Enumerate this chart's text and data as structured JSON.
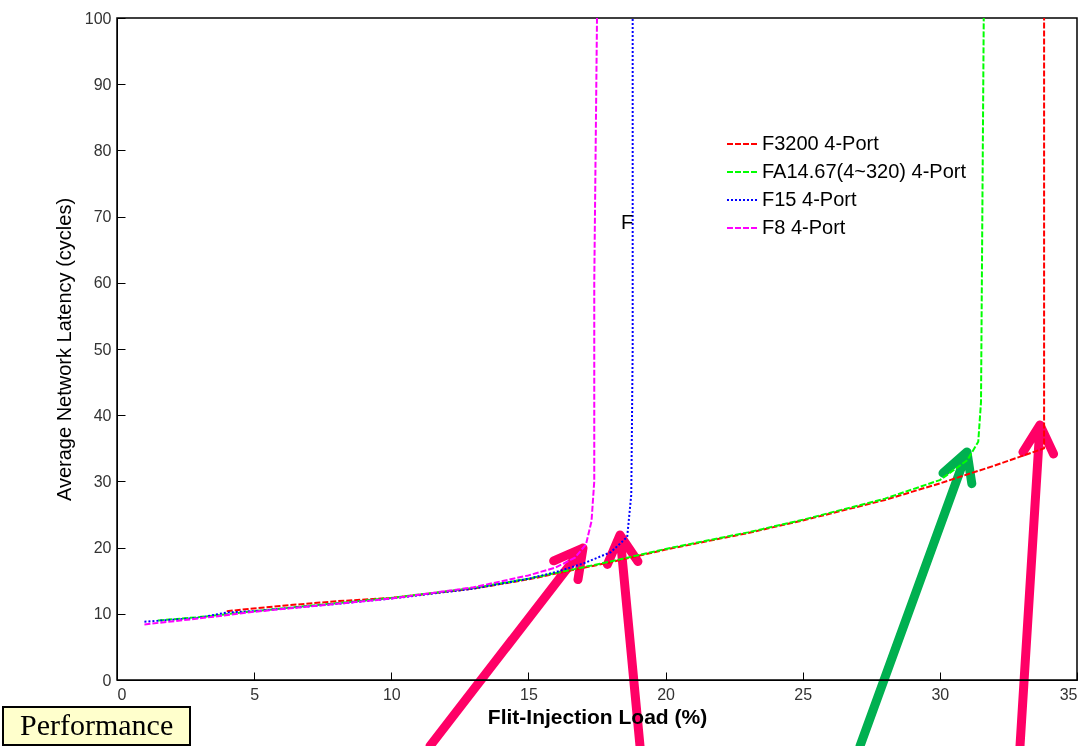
{
  "chart_data": {
    "type": "line",
    "xlabel": "Flit-Injection Load (%)",
    "ylabel": "Average Network Latency (cycles)",
    "xlim": [
      0,
      35
    ],
    "xticks": [
      0,
      5,
      10,
      15,
      20,
      25,
      30,
      35
    ],
    "ylim": [
      0,
      100
    ],
    "yticks": [
      0,
      10,
      20,
      30,
      40,
      50,
      60,
      70,
      80,
      90,
      100
    ],
    "grid": false,
    "legend": "top right",
    "marker": "none",
    "series": [
      {
        "name": "F3200 4-Port",
        "color": "#ff0000",
        "line_style": "dashed",
        "x": [
          4,
          6,
          8,
          10,
          13,
          15,
          18,
          20,
          23,
          25,
          28,
          30,
          32,
          33.8,
          33.8
        ],
        "values": [
          10.4,
          11.2,
          11.9,
          12.4,
          13.8,
          15.2,
          17.8,
          19.7,
          22.2,
          24.1,
          27.2,
          29.7,
          32.4,
          35,
          100
        ]
      },
      {
        "name": "FA14.67(4~320) 4-Port",
        "color": "#00ff00",
        "line_style": "dashed",
        "x": [
          1.5,
          3,
          5,
          8,
          10,
          13,
          15,
          18,
          20,
          23,
          25,
          28,
          30,
          31,
          31.4,
          31.5,
          31.6
        ],
        "values": [
          9.0,
          9.5,
          10.4,
          11.6,
          12.4,
          13.9,
          15.3,
          17.9,
          19.8,
          22.3,
          24.2,
          27.4,
          30.2,
          33.2,
          36,
          42,
          100
        ]
      },
      {
        "name": "F15 4-Port",
        "color": "#0000ff",
        "line_style": "dotted",
        "x": [
          1,
          3,
          4,
          5,
          8,
          10,
          13,
          15,
          16,
          17,
          18,
          18.6,
          18.75,
          18.8,
          18.8
        ],
        "values": [
          8.8,
          9.4,
          10.2,
          10.4,
          11.5,
          12.3,
          13.8,
          15.3,
          16.3,
          17.6,
          19.3,
          21.6,
          28,
          50,
          100
        ]
      },
      {
        "name": "F8 4-Port",
        "color": "#ff00ff",
        "line_style": "dashed",
        "x": [
          1,
          3,
          5,
          8,
          10,
          13,
          15,
          16,
          16.7,
          17.1,
          17.3,
          17.4,
          17.4,
          17.5
        ],
        "values": [
          8.4,
          9.3,
          10.3,
          11.5,
          12.3,
          14,
          15.8,
          17,
          18.5,
          20.5,
          24,
          30,
          60,
          100
        ]
      }
    ],
    "annotations": [
      {
        "text": "F",
        "x": 18.6,
        "y": 69
      },
      "Performance"
    ]
  }
}
